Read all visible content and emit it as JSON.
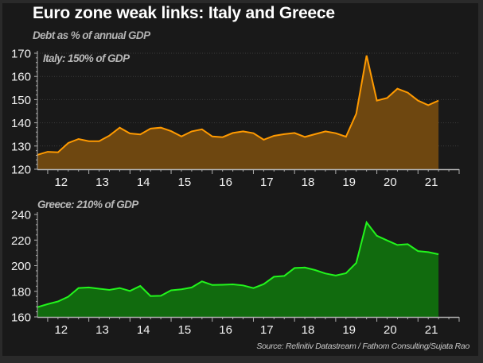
{
  "title": "Euro zone weak links: Italy and Greece",
  "subtitle": "Debt as % of annual GDP",
  "source": "Source: Refinitiv Datastream / Fathom Consulting/Sujata Rao",
  "colors": {
    "background": "#191919",
    "italy_line": "#ff9a00",
    "italy_fill": "#6e4710",
    "greece_line": "#22f51c",
    "greece_fill": "#116b0e",
    "axis": "#b0b0b0",
    "grid": "#3a3a3a"
  },
  "chart_data": [
    {
      "type": "area",
      "name": "italy",
      "label": "Italy: 150% of GDP",
      "xlabel": "",
      "ylabel": "Debt as % of annual GDP",
      "x_unit": "quarter",
      "x_start": 2011.75,
      "x_step": 0.25,
      "xlim": [
        2011.75,
        2022.0
      ],
      "ylim": [
        120,
        170
      ],
      "y_ticks": [
        120,
        130,
        140,
        150,
        160,
        170
      ],
      "x_tick_labels": [
        "12",
        "13",
        "14",
        "15",
        "16",
        "17",
        "18",
        "19",
        "20",
        "21"
      ],
      "x_tick_years": [
        2012,
        2013,
        2014,
        2015,
        2016,
        2017,
        2018,
        2019,
        2020,
        2021
      ],
      "grid": true,
      "values": [
        126.2,
        127.5,
        127.3,
        131.3,
        133.0,
        132.1,
        132.1,
        134.5,
        137.9,
        135.4,
        135.0,
        137.5,
        137.9,
        136.4,
        134.1,
        136.3,
        137.2,
        134.1,
        133.8,
        135.6,
        136.3,
        135.5,
        132.7,
        134.4,
        135.1,
        135.6,
        133.9,
        135.1,
        136.3,
        135.5,
        134.0,
        143.9,
        169.0,
        149.6,
        150.7,
        154.7,
        153.0,
        149.6,
        147.6,
        149.6
      ]
    },
    {
      "type": "area",
      "name": "greece",
      "label": "Greece: 210% of GDP",
      "xlabel": "",
      "ylabel": "Debt as % of annual GDP",
      "x_unit": "quarter",
      "x_start": 2011.75,
      "x_step": 0.25,
      "xlim": [
        2011.75,
        2022.0
      ],
      "ylim": [
        160,
        240
      ],
      "y_ticks": [
        160,
        180,
        200,
        220,
        240
      ],
      "x_tick_labels": [
        "12",
        "13",
        "14",
        "15",
        "16",
        "17",
        "18",
        "19",
        "20",
        "21"
      ],
      "x_tick_years": [
        2012,
        2013,
        2014,
        2015,
        2016,
        2017,
        2018,
        2019,
        2020,
        2021
      ],
      "grid": false,
      "values": [
        167.6,
        170.0,
        172.1,
        175.8,
        182.6,
        183.0,
        182.0,
        181.1,
        182.6,
        180.3,
        184.2,
        176.3,
        176.5,
        180.8,
        181.6,
        183.0,
        187.8,
        184.9,
        185.1,
        185.4,
        184.6,
        182.5,
        185.6,
        191.4,
        192.0,
        198.2,
        198.6,
        196.6,
        193.9,
        192.4,
        194.1,
        202.2,
        233.8,
        223.4,
        219.7,
        216.2,
        216.8,
        211.4,
        210.6,
        208.9
      ]
    }
  ]
}
